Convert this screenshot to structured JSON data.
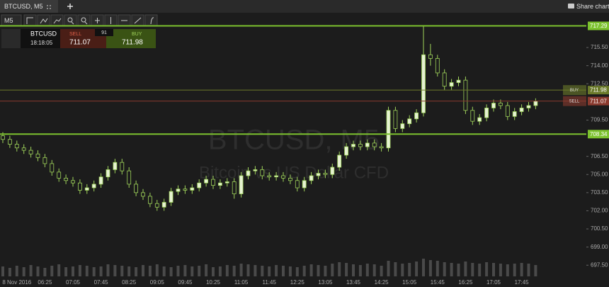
{
  "ui": {
    "tab": "BTCUSD, M5",
    "share": "Share chart",
    "timeframe": "M5",
    "trade": {
      "symbol": "BTCUSD",
      "time": "18:18:05",
      "sell_label": "SELL",
      "sell_price": "711.07",
      "spread": "91",
      "buy_label": "BUY",
      "buy_price": "711.98"
    }
  },
  "chart_data": {
    "type": "candlestick",
    "watermark": "BTCUSD, M5",
    "subtitle": "Bitcoin vs US Dollar CFD",
    "categories": [
      null,
      null,
      "8 Nov 2016",
      null,
      null,
      null,
      "06:25",
      null,
      null,
      null,
      "07:05",
      null,
      null,
      null,
      "07:45",
      null,
      null,
      null,
      "08:25",
      null,
      null,
      null,
      "09:05",
      null,
      null,
      null,
      "09:45",
      null,
      null,
      null,
      "10:25",
      null,
      null,
      null,
      "11:05",
      null,
      null,
      null,
      "11:45",
      null,
      null,
      null,
      "12:25",
      null,
      null,
      null,
      "13:05",
      null,
      null,
      null,
      "13:45",
      null,
      null,
      null,
      "14:25",
      null,
      null,
      null,
      "15:05",
      null,
      null,
      null,
      "15:45",
      null,
      null,
      null,
      "16:25",
      null,
      null,
      null,
      "17:05",
      null,
      null,
      null,
      "17:45",
      null,
      null
    ],
    "open": [
      708.2,
      707.9,
      707.5,
      707.2,
      707.0,
      706.7,
      706.4,
      705.9,
      705.2,
      704.7,
      704.5,
      704.3,
      703.7,
      703.9,
      704.2,
      704.8,
      705.4,
      706.0,
      705.3,
      704.2,
      703.5,
      703.2,
      702.6,
      702.3,
      702.7,
      703.6,
      703.8,
      703.7,
      703.9,
      704.3,
      704.6,
      704.1,
      704.3,
      704.4,
      703.4,
      704.9,
      705.3,
      705.4,
      704.9,
      704.8,
      704.9,
      704.7,
      704.5,
      703.9,
      704.5,
      704.9,
      705.1,
      705.0,
      705.6,
      706.6,
      707.3,
      707.5,
      707.3,
      707.6,
      707.3,
      707.2,
      710.3,
      708.8,
      709.2,
      709.6,
      710.1,
      714.9,
      714.6,
      713.4,
      712.3,
      712.6,
      712.8,
      710.3,
      709.4,
      709.7,
      710.5,
      710.9,
      710.7,
      709.8,
      710.2,
      710.5,
      710.7
    ],
    "high": [
      708.5,
      708.2,
      707.8,
      707.5,
      707.3,
      707.0,
      706.7,
      706.2,
      705.5,
      705.0,
      704.8,
      704.6,
      704.2,
      704.5,
      705.1,
      705.7,
      706.3,
      706.3,
      705.6,
      704.5,
      703.8,
      703.5,
      702.9,
      703.0,
      703.9,
      704.1,
      704.1,
      704.2,
      704.6,
      704.9,
      704.9,
      704.6,
      704.7,
      704.7,
      705.2,
      705.6,
      705.7,
      705.7,
      705.2,
      705.2,
      705.2,
      705.0,
      704.8,
      704.8,
      705.2,
      705.4,
      705.4,
      705.9,
      706.9,
      707.6,
      707.8,
      707.8,
      707.9,
      707.9,
      707.6,
      710.6,
      710.6,
      709.5,
      709.9,
      710.4,
      717.29,
      715.8,
      714.9,
      713.7,
      712.9,
      713.1,
      713.1,
      710.6,
      710.0,
      710.8,
      711.2,
      711.2,
      711.0,
      710.5,
      710.8,
      711.0,
      711.3
    ],
    "low": [
      707.6,
      707.2,
      706.9,
      706.7,
      706.4,
      706.1,
      705.6,
      704.9,
      704.4,
      704.2,
      704.0,
      703.4,
      703.4,
      703.6,
      703.9,
      704.5,
      705.1,
      705.0,
      703.9,
      703.2,
      702.9,
      702.3,
      702.0,
      702.0,
      702.4,
      703.3,
      703.4,
      703.4,
      703.6,
      704.0,
      703.8,
      703.8,
      704.0,
      703.0,
      703.1,
      704.6,
      705.0,
      704.6,
      704.5,
      704.5,
      704.4,
      704.2,
      703.6,
      703.6,
      704.2,
      704.6,
      704.7,
      704.7,
      705.3,
      706.3,
      707.0,
      707.0,
      707.0,
      707.0,
      706.9,
      706.9,
      708.5,
      708.5,
      708.9,
      709.3,
      709.8,
      714.0,
      713.1,
      712.0,
      712.0,
      712.3,
      710.0,
      709.1,
      709.1,
      709.4,
      710.2,
      710.4,
      709.5,
      709.5,
      709.9,
      710.2,
      710.4
    ],
    "close": [
      707.9,
      707.5,
      707.2,
      707.0,
      706.7,
      706.4,
      705.9,
      705.2,
      704.7,
      704.5,
      704.3,
      703.7,
      703.9,
      704.2,
      704.8,
      705.4,
      706.0,
      705.3,
      704.2,
      703.5,
      703.2,
      702.6,
      702.3,
      702.7,
      703.6,
      703.8,
      703.7,
      703.9,
      704.3,
      704.6,
      704.1,
      704.3,
      704.4,
      703.4,
      704.9,
      705.3,
      705.4,
      704.9,
      704.8,
      704.9,
      704.7,
      704.5,
      703.9,
      704.5,
      704.9,
      705.1,
      705.0,
      705.6,
      706.6,
      707.3,
      707.5,
      707.3,
      707.6,
      707.3,
      707.2,
      710.3,
      708.8,
      709.2,
      709.6,
      710.1,
      714.9,
      714.6,
      713.4,
      712.3,
      712.6,
      712.8,
      710.3,
      709.4,
      709.7,
      710.5,
      710.9,
      710.7,
      709.8,
      710.2,
      710.5,
      710.7,
      711.07
    ],
    "volume": [
      14,
      12,
      15,
      13,
      16,
      14,
      12,
      15,
      17,
      13,
      14,
      16,
      15,
      13,
      14,
      17,
      16,
      15,
      14,
      13,
      16,
      15,
      17,
      14,
      13,
      15,
      16,
      14,
      15,
      17,
      13,
      14,
      16,
      15,
      18,
      17,
      16,
      15,
      14,
      16,
      15,
      14,
      13,
      15,
      17,
      16,
      15,
      18,
      20,
      19,
      17,
      16,
      18,
      17,
      15,
      22,
      20,
      18,
      19,
      21,
      25,
      23,
      22,
      20,
      19,
      18,
      21,
      19,
      18,
      20,
      19,
      18,
      17,
      18,
      19,
      18,
      16
    ],
    "ylim": [
      696.46,
      718.14
    ],
    "yticks": [
      {
        "value": 715.5,
        "label": "715.50"
      },
      {
        "value": 714,
        "label": "714.00"
      },
      {
        "value": 712.5,
        "label": "712.50"
      },
      {
        "value": 709.5,
        "label": "709.50"
      },
      {
        "value": 706.5,
        "label": "706.50"
      },
      {
        "value": 705,
        "label": "705.00"
      },
      {
        "value": 703.5,
        "label": "703.50"
      },
      {
        "value": 702,
        "label": "702.00"
      },
      {
        "value": 700.5,
        "label": "700.50"
      },
      {
        "value": 699,
        "label": "699.00"
      },
      {
        "value": 697.5,
        "label": "697.50"
      }
    ],
    "price_lines": [
      {
        "value": 717.29,
        "color": "#7cc22e"
      },
      {
        "value": 711.98,
        "color": "#6b7a2a",
        "label": "BUY"
      },
      {
        "value": 711.07,
        "color": "#8a3a2e",
        "label": "SELL"
      },
      {
        "value": 708.34,
        "color": "#7cc22e"
      }
    ],
    "up_color": "#e6f2d2",
    "down_color": "#1c1c1c",
    "wick_color": "#9fd35a",
    "volume_color": "#4a4a4a"
  }
}
